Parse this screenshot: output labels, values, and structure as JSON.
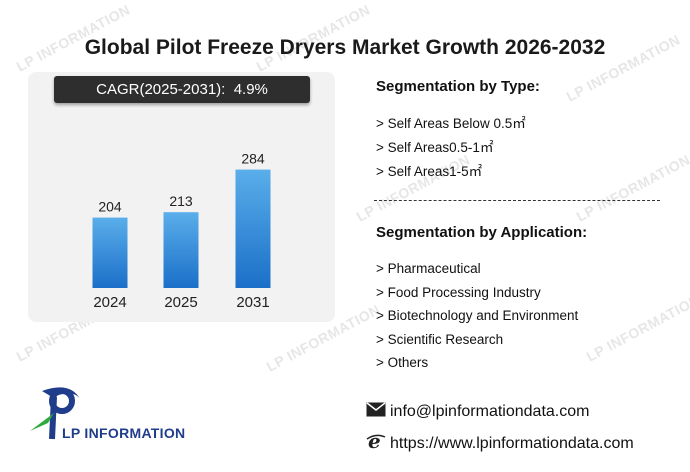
{
  "title": "Global Pilot Freeze Dryers Market Growth 2026-2032",
  "cagr": {
    "label": "CAGR(2025-2031):",
    "value": "4.9%"
  },
  "chart_data": {
    "type": "bar",
    "categories": [
      "2024",
      "2025",
      "2031"
    ],
    "values": [
      204,
      213,
      284
    ],
    "title": "",
    "xlabel": "",
    "ylabel": "",
    "ylim": [
      0,
      300
    ],
    "grid": false,
    "bar_color_top": "#5aaeea",
    "bar_color_bottom": "#1b6fc8"
  },
  "segmentation_type": {
    "heading": "Segmentation by Type:",
    "items": [
      "> Self Areas Below 0.5㎡",
      "> Self Areas0.5-1㎡",
      "> Self Areas1-5㎡"
    ]
  },
  "segmentation_application": {
    "heading": "Segmentation by Application:",
    "items": [
      "> Pharmaceutical",
      "> Food Processing Industry",
      "> Biotechnology and Environment",
      "> Scientific Research",
      "> Others"
    ]
  },
  "contact": {
    "email": "info@lpinformationdata.com",
    "website": "https://www.lpinformationdata.com",
    "email_icon": "envelope-icon",
    "web_icon": "browser-e-icon"
  },
  "logo": {
    "text": "LP INFORMATION",
    "color_blue": "#1f3d8a",
    "color_green": "#2eaa3c"
  },
  "watermark_text": "LP INFORMATION"
}
